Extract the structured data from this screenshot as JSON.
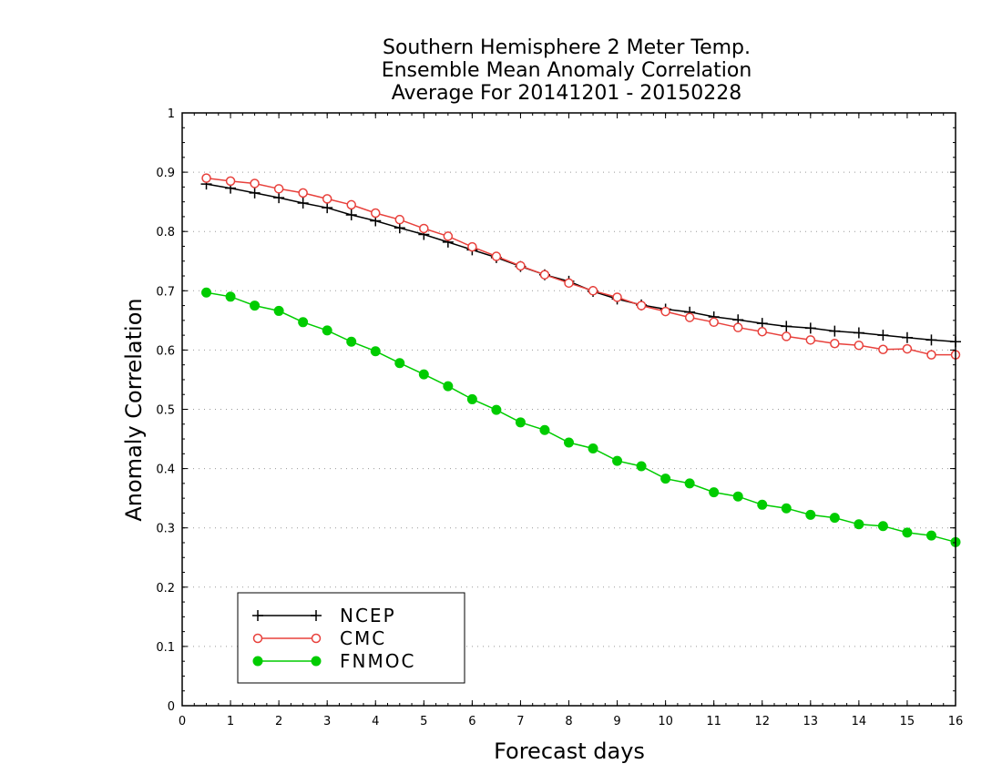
{
  "chart_data": {
    "type": "line",
    "title": [
      "Southern Hemisphere 2 Meter Temp.",
      "Ensemble Mean Anomaly Correlation",
      "Average For 20141201 - 20150228"
    ],
    "xlabel": "Forecast days",
    "ylabel": "Anomaly Correlation",
    "xlim": [
      0,
      16
    ],
    "ylim": [
      0,
      1
    ],
    "xticks": [
      0,
      1,
      2,
      3,
      4,
      5,
      6,
      7,
      8,
      9,
      10,
      11,
      12,
      13,
      14,
      15,
      16
    ],
    "yticks": [
      0,
      0.1,
      0.2,
      0.3,
      0.4,
      0.5,
      0.6,
      0.7,
      0.8,
      0.9,
      1
    ],
    "grid": "horizontal dotted",
    "legend_position": "bottom-left",
    "x": [
      0.5,
      1,
      1.5,
      2,
      2.5,
      3,
      3.5,
      4,
      4.5,
      5,
      5.5,
      6,
      6.5,
      7,
      7.5,
      8,
      8.5,
      9,
      9.5,
      10,
      10.5,
      11,
      11.5,
      12,
      12.5,
      13,
      13.5,
      14,
      14.5,
      15,
      15.5,
      16
    ],
    "series": [
      {
        "name": "NCEP",
        "color": "#000000",
        "marker": "plus",
        "values": [
          0.88,
          0.873,
          0.865,
          0.857,
          0.848,
          0.84,
          0.828,
          0.818,
          0.806,
          0.795,
          0.782,
          0.769,
          0.756,
          0.741,
          0.727,
          0.716,
          0.699,
          0.686,
          0.676,
          0.669,
          0.664,
          0.656,
          0.651,
          0.645,
          0.64,
          0.637,
          0.632,
          0.629,
          0.625,
          0.621,
          0.617,
          0.614
        ]
      },
      {
        "name": "CMC",
        "color": "#e8413c",
        "marker": "open-circle",
        "values": [
          0.89,
          0.885,
          0.881,
          0.872,
          0.865,
          0.855,
          0.845,
          0.831,
          0.82,
          0.805,
          0.792,
          0.774,
          0.758,
          0.742,
          0.727,
          0.713,
          0.7,
          0.689,
          0.675,
          0.665,
          0.655,
          0.647,
          0.638,
          0.631,
          0.623,
          0.617,
          0.611,
          0.608,
          0.601,
          0.602,
          0.592,
          0.592
        ]
      },
      {
        "name": "FNMOC",
        "color": "#00cc00",
        "marker": "filled-circle",
        "values": [
          0.697,
          0.69,
          0.675,
          0.666,
          0.647,
          0.633,
          0.614,
          0.598,
          0.578,
          0.559,
          0.539,
          0.517,
          0.499,
          0.478,
          0.465,
          0.444,
          0.434,
          0.413,
          0.404,
          0.383,
          0.375,
          0.36,
          0.353,
          0.339,
          0.333,
          0.322,
          0.317,
          0.306,
          0.303,
          0.292,
          0.287,
          0.276
        ]
      }
    ]
  }
}
